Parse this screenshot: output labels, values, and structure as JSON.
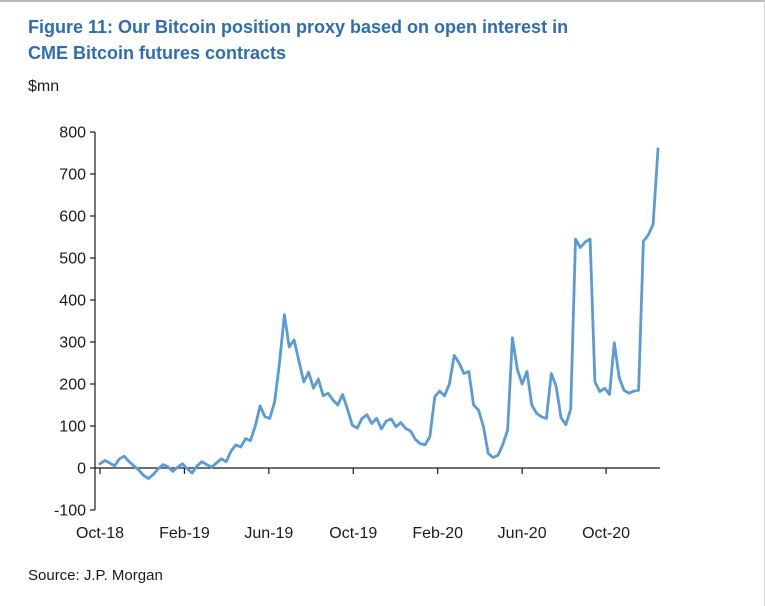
{
  "figure": {
    "title": "Figure 11: Our Bitcoin position proxy based on open interest in CME Bitcoin futures contracts",
    "title_lines": [
      "Figure 11: Our Bitcoin position proxy based on open interest in",
      "CME Bitcoin futures contracts"
    ],
    "unit_label": "$mn",
    "source": "Source: J.P. Morgan"
  },
  "colors": {
    "title_blue": "#2e6db4",
    "line_blue": "#5b9bd5",
    "axis_black": "#1a1a1a",
    "text_black": "#1a1a1a"
  },
  "chart_data": {
    "type": "line",
    "title": "Our Bitcoin position proxy based on open interest in CME Bitcoin futures contracts",
    "ylabel": "$mn",
    "xlabel": "",
    "ylim": [
      -100,
      800
    ],
    "yticks": [
      800,
      700,
      600,
      500,
      400,
      300,
      200,
      100,
      0,
      -100
    ],
    "grid": false,
    "legend": "none",
    "x_unit": "weeks since Oct-2018",
    "xtick_labels": [
      "Oct-18",
      "Feb-19",
      "Jun-19",
      "Oct-19",
      "Feb-20",
      "Jun-20",
      "Oct-20"
    ],
    "xtick_weeks": [
      0,
      17.4,
      34.8,
      52.2,
      69.6,
      87,
      104.3
    ],
    "series": [
      {
        "name": "Bitcoin position proxy ($mn)",
        "values": [
          10,
          18,
          12,
          5,
          22,
          28,
          15,
          5,
          -5,
          -18,
          -25,
          -15,
          -2,
          8,
          3,
          -8,
          2,
          10,
          -2,
          -12,
          5,
          15,
          8,
          2,
          12,
          22,
          15,
          40,
          55,
          50,
          70,
          65,
          100,
          148,
          122,
          118,
          158,
          250,
          365,
          288,
          305,
          255,
          205,
          228,
          190,
          212,
          172,
          178,
          162,
          150,
          175,
          140,
          102,
          95,
          118,
          127,
          106,
          118,
          93,
          112,
          117,
          98,
          108,
          94,
          88,
          68,
          58,
          55,
          75,
          170,
          183,
          172,
          200,
          268,
          250,
          225,
          230,
          150,
          138,
          100,
          35,
          25,
          30,
          55,
          90,
          310,
          235,
          200,
          230,
          150,
          130,
          122,
          118,
          225,
          195,
          120,
          103,
          140,
          545,
          525,
          538,
          545,
          205,
          182,
          190,
          175,
          298,
          215,
          185,
          178,
          183,
          185,
          540,
          555,
          580,
          760
        ]
      }
    ]
  }
}
